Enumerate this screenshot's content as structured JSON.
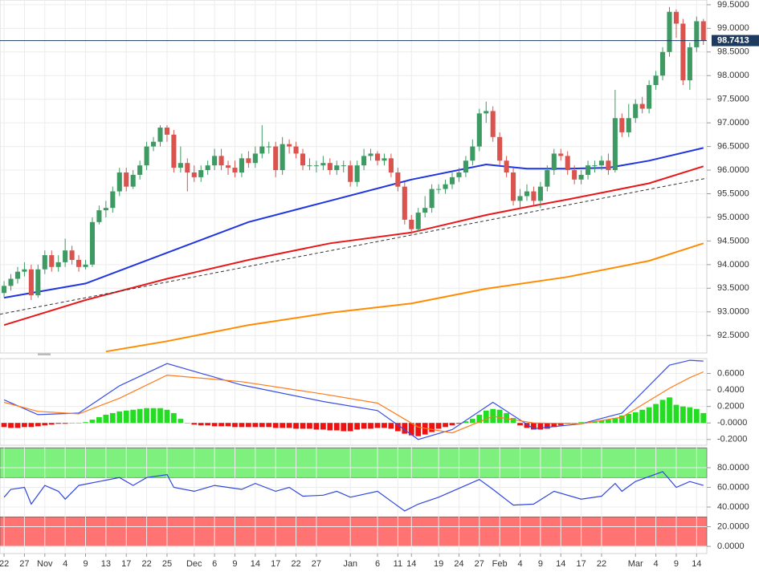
{
  "chart_data": [
    {
      "type": "candlestick",
      "xlim": [
        -0.6,
        103.5
      ],
      "ylim": [
        92.13,
        99.6
      ],
      "yticks": [
        {
          "value": 92.5,
          "label": "92.5000"
        },
        {
          "value": 93,
          "label": "93.0000"
        },
        {
          "value": 93.5,
          "label": "93.5000"
        },
        {
          "value": 94,
          "label": "94.0000"
        },
        {
          "value": 94.5,
          "label": "94.5000"
        },
        {
          "value": 95,
          "label": "95.0000"
        },
        {
          "value": 95.5,
          "label": "95.5000"
        },
        {
          "value": 96,
          "label": "96.0000"
        },
        {
          "value": 96.5,
          "label": "96.5000"
        },
        {
          "value": 97,
          "label": "97.0000"
        },
        {
          "value": 97.5,
          "label": "97.5000"
        },
        {
          "value": 98,
          "label": "98.0000"
        },
        {
          "value": 98.5,
          "label": "98.5000"
        },
        {
          "value": 99,
          "label": "99.0000"
        },
        {
          "value": 99.5,
          "label": "99.5000"
        }
      ],
      "grid": true,
      "up_color": "#3d9a62",
      "down_color": "#d9534f",
      "last_price": 98.7413,
      "last_price_color": "#1e3a5f",
      "open": [
        93.4,
        93.55,
        93.7,
        93.85,
        93.9,
        93.35,
        93.9,
        94.2,
        93.95,
        94.05,
        94.3,
        94.1,
        93.95,
        94.0,
        94.9,
        95.15,
        95.2,
        95.55,
        95.95,
        95.65,
        95.9,
        96.1,
        96.5,
        96.6,
        96.9,
        96.75,
        96.05,
        96.15,
        95.95,
        95.85,
        96.0,
        96.1,
        96.3,
        96.1,
        96.05,
        95.95,
        96.25,
        96.15,
        96.35,
        96.5,
        96.5,
        96.0,
        96.55,
        96.5,
        96.35,
        96.1,
        96.1,
        96.1,
        96.15,
        96.0,
        96.1,
        96.1,
        95.75,
        96.1,
        96.3,
        96.35,
        96.2,
        96.25,
        95.95,
        95.65,
        94.95,
        94.75,
        95.1,
        95.2,
        95.6,
        95.6,
        95.7,
        95.85,
        95.95,
        96.2,
        96.5,
        97.2,
        97.25,
        96.7,
        96.2,
        95.95,
        95.35,
        95.45,
        95.55,
        95.35,
        95.65,
        96.0,
        96.35,
        96.3,
        96.0,
        95.8,
        95.9,
        96.1,
        96.1,
        96.2,
        96.0,
        97.1,
        96.8,
        97.1,
        97.4,
        97.3,
        97.8,
        98.0,
        98.5,
        99.35,
        99.1,
        97.9,
        98.6,
        99.15
      ],
      "high": [
        93.65,
        93.8,
        93.95,
        94.05,
        94.0,
        94.0,
        94.3,
        94.3,
        94.2,
        94.55,
        94.4,
        94.2,
        94.1,
        95.0,
        95.25,
        95.35,
        95.65,
        96.05,
        96.05,
        96.0,
        96.2,
        96.6,
        96.7,
        96.95,
        96.95,
        96.85,
        96.5,
        96.25,
        96.1,
        96.1,
        96.2,
        96.45,
        96.45,
        96.2,
        96.2,
        96.35,
        96.4,
        96.5,
        96.95,
        96.6,
        96.6,
        96.7,
        96.65,
        96.6,
        96.45,
        96.25,
        96.2,
        96.3,
        96.25,
        96.2,
        96.2,
        96.2,
        96.2,
        96.45,
        96.45,
        96.4,
        96.35,
        96.35,
        96.05,
        95.75,
        95.05,
        95.2,
        95.45,
        95.7,
        95.7,
        95.8,
        95.95,
        96.05,
        96.3,
        96.65,
        97.3,
        97.45,
        97.35,
        96.8,
        96.3,
        96.05,
        95.6,
        95.7,
        95.65,
        95.75,
        96.1,
        96.45,
        96.45,
        96.4,
        96.1,
        96.0,
        96.2,
        96.2,
        96.3,
        96.35,
        97.7,
        97.2,
        97.4,
        97.5,
        97.55,
        97.9,
        98.1,
        98.6,
        99.45,
        99.4,
        99.2,
        98.7,
        99.25,
        99.2
      ],
      "low": [
        93.3,
        93.45,
        93.6,
        93.75,
        93.25,
        93.3,
        93.8,
        93.85,
        93.85,
        93.95,
        94.0,
        93.85,
        93.9,
        93.95,
        94.85,
        95.0,
        95.1,
        95.45,
        95.55,
        95.6,
        95.8,
        96.0,
        96.4,
        96.5,
        96.6,
        95.95,
        95.95,
        95.55,
        95.75,
        95.75,
        95.9,
        96.0,
        96.0,
        95.9,
        95.85,
        95.85,
        96.05,
        96.05,
        96.25,
        96.35,
        95.85,
        95.9,
        96.35,
        96.25,
        96.0,
        96.0,
        95.95,
        96.0,
        95.9,
        95.9,
        95.95,
        95.65,
        95.65,
        96.0,
        96.2,
        96.1,
        96.1,
        95.85,
        95.55,
        94.85,
        94.65,
        94.7,
        95.0,
        95.1,
        95.5,
        95.5,
        95.6,
        95.75,
        95.85,
        96.1,
        96.4,
        97.0,
        96.6,
        96.1,
        95.85,
        95.25,
        95.2,
        95.35,
        95.25,
        95.2,
        95.55,
        95.9,
        96.2,
        95.9,
        95.7,
        95.7,
        95.8,
        95.95,
        96.0,
        95.9,
        95.95,
        96.7,
        96.7,
        97.0,
        97.2,
        97.2,
        97.7,
        97.9,
        98.4,
        98.8,
        97.8,
        97.7,
        98.5,
        98.65
      ],
      "close": [
        93.55,
        93.7,
        93.85,
        93.9,
        93.35,
        93.9,
        94.2,
        93.95,
        94.05,
        94.3,
        94.1,
        93.95,
        94.0,
        94.9,
        95.15,
        95.2,
        95.55,
        95.95,
        95.65,
        95.9,
        96.1,
        96.5,
        96.6,
        96.9,
        96.75,
        96.05,
        96.15,
        95.95,
        95.85,
        96.0,
        96.1,
        96.3,
        96.1,
        96.05,
        95.95,
        96.25,
        96.15,
        96.35,
        96.5,
        96.5,
        96.0,
        96.55,
        96.5,
        96.35,
        96.1,
        96.1,
        96.1,
        96.15,
        96.0,
        96.1,
        96.1,
        95.75,
        96.1,
        96.3,
        96.35,
        96.2,
        96.25,
        95.95,
        95.65,
        94.95,
        94.75,
        95.1,
        95.2,
        95.6,
        95.6,
        95.7,
        95.85,
        95.95,
        96.2,
        96.5,
        97.2,
        97.25,
        96.7,
        96.2,
        95.95,
        95.35,
        95.45,
        95.55,
        95.35,
        95.65,
        96.0,
        96.35,
        96.3,
        96.0,
        95.8,
        95.9,
        96.1,
        96.1,
        96.2,
        96.0,
        97.1,
        96.8,
        97.1,
        97.4,
        97.3,
        97.8,
        98.0,
        98.5,
        99.35,
        99.1,
        97.9,
        98.6,
        99.15,
        98.74
      ],
      "series": [
        {
          "color": "#1f35e0",
          "x": [
            0,
            12,
            24,
            36,
            48,
            60,
            71,
            77,
            83,
            89,
            95,
            103
          ],
          "values": [
            93.3,
            93.6,
            94.25,
            94.9,
            95.35,
            95.8,
            96.12,
            96.03,
            96.03,
            96.05,
            96.2,
            96.47
          ]
        },
        {
          "color": "#e8171a",
          "x": [
            0,
            12,
            24,
            36,
            48,
            60,
            71,
            77,
            83,
            89,
            95,
            103
          ],
          "values": [
            92.72,
            93.25,
            93.7,
            94.1,
            94.45,
            94.68,
            95.05,
            95.22,
            95.38,
            95.55,
            95.72,
            96.08
          ]
        },
        {
          "color": "#ff8c00",
          "x": [
            15,
            24,
            36,
            48,
            60,
            71,
            83,
            95,
            103
          ],
          "values": [
            92.16,
            92.38,
            92.72,
            92.98,
            93.18,
            93.49,
            93.74,
            94.08,
            94.45
          ]
        },
        {
          "color": "#333333",
          "dash": true,
          "x": [
            -0.6,
            103.5
          ],
          "values": [
            92.95,
            95.83
          ]
        }
      ]
    },
    {
      "type": "macd",
      "ylim": [
        -0.27,
        0.78
      ],
      "yticks": [
        {
          "value": -0.2,
          "label": "-0.2000"
        },
        {
          "value": 0,
          "label": "-0.0000"
        },
        {
          "value": 0.2,
          "label": "0.2000"
        },
        {
          "value": 0.4,
          "label": "0.4000"
        },
        {
          "value": 0.6,
          "label": "0.6000"
        }
      ],
      "grid": true,
      "up_color": "#22dd22",
      "down_color": "#ee1111",
      "histogram": [
        -0.05,
        -0.06,
        -0.06,
        -0.05,
        -0.05,
        -0.04,
        -0.03,
        -0.02,
        -0.01,
        -0.01,
        0.0,
        0.0,
        0.01,
        0.04,
        0.07,
        0.1,
        0.12,
        0.14,
        0.15,
        0.16,
        0.17,
        0.18,
        0.18,
        0.18,
        0.16,
        0.12,
        0.05,
        0.0,
        -0.02,
        -0.03,
        -0.03,
        -0.04,
        -0.04,
        -0.04,
        -0.05,
        -0.05,
        -0.05,
        -0.05,
        -0.05,
        -0.05,
        -0.06,
        -0.06,
        -0.06,
        -0.07,
        -0.07,
        -0.07,
        -0.08,
        -0.08,
        -0.09,
        -0.09,
        -0.1,
        -0.1,
        -0.08,
        -0.07,
        -0.07,
        -0.06,
        -0.06,
        -0.07,
        -0.1,
        -0.13,
        -0.15,
        -0.16,
        -0.14,
        -0.11,
        -0.07,
        -0.05,
        -0.03,
        -0.01,
        0.02,
        0.05,
        0.1,
        0.15,
        0.17,
        0.16,
        0.12,
        0.06,
        -0.03,
        -0.06,
        -0.08,
        -0.08,
        -0.07,
        -0.05,
        -0.03,
        -0.01,
        0.0,
        0.01,
        0.01,
        0.02,
        0.03,
        0.04,
        0.06,
        0.09,
        0.11,
        0.13,
        0.16,
        0.19,
        0.23,
        0.28,
        0.31,
        0.22,
        0.2,
        0.19,
        0.17,
        0.12
      ],
      "series": [
        {
          "color": "#3a4ee8",
          "x": [
            0,
            5,
            11,
            17,
            24,
            35,
            47,
            55,
            61,
            66,
            72,
            78,
            85,
            91,
            98,
            101,
            103
          ],
          "values": [
            0.28,
            0.1,
            0.12,
            0.45,
            0.72,
            0.46,
            0.26,
            0.15,
            -0.2,
            -0.08,
            0.25,
            -0.07,
            -0.01,
            0.12,
            0.7,
            0.76,
            0.75
          ]
        },
        {
          "color": "#ff7a1a",
          "x": [
            0,
            5,
            11,
            17,
            24,
            35,
            47,
            55,
            61,
            66,
            72,
            78,
            85,
            91,
            98,
            101,
            103
          ],
          "values": [
            0.25,
            0.14,
            0.11,
            0.3,
            0.58,
            0.5,
            0.35,
            0.24,
            -0.05,
            -0.12,
            0.08,
            0.0,
            -0.01,
            0.07,
            0.42,
            0.55,
            0.62
          ]
        }
      ]
    },
    {
      "type": "rsi",
      "ylim": [
        -7.3,
        100.4
      ],
      "yticks": [
        {
          "value": 0,
          "label": "0.0000"
        },
        {
          "value": 20,
          "label": "20.0000"
        },
        {
          "value": 40,
          "label": "40.0000"
        },
        {
          "value": 60,
          "label": "60.0000"
        },
        {
          "value": 80,
          "label": "80.0000"
        }
      ],
      "grid": true,
      "bands": [
        {
          "from": 70,
          "to": 100,
          "color": "#7df07d"
        },
        {
          "from": 0,
          "to": 30,
          "color": "#ff7373"
        }
      ],
      "xticks": [
        {
          "value": 0,
          "label": "22"
        },
        {
          "value": 3,
          "label": "27"
        },
        {
          "value": 6,
          "label": "Nov"
        },
        {
          "value": 9,
          "label": "4"
        },
        {
          "value": 12,
          "label": "9"
        },
        {
          "value": 15,
          "label": "13"
        },
        {
          "value": 18,
          "label": "17"
        },
        {
          "value": 21,
          "label": "22"
        },
        {
          "value": 24,
          "label": "25"
        },
        {
          "value": 28,
          "label": "Dec"
        },
        {
          "value": 31,
          "label": "6"
        },
        {
          "value": 34,
          "label": "9"
        },
        {
          "value": 37,
          "label": "14"
        },
        {
          "value": 40,
          "label": "17"
        },
        {
          "value": 43,
          "label": "22"
        },
        {
          "value": 46,
          "label": "27"
        },
        {
          "value": 51,
          "label": "Jan"
        },
        {
          "value": 55,
          "label": "6"
        },
        {
          "value": 58,
          "label": "11"
        },
        {
          "value": 60,
          "label": "14"
        },
        {
          "value": 64,
          "label": "19"
        },
        {
          "value": 67,
          "label": "24"
        },
        {
          "value": 70,
          "label": "27"
        },
        {
          "value": 73,
          "label": "Feb"
        },
        {
          "value": 76,
          "label": "4"
        },
        {
          "value": 79,
          "label": "9"
        },
        {
          "value": 82,
          "label": "14"
        },
        {
          "value": 85,
          "label": "17"
        },
        {
          "value": 88,
          "label": "22"
        },
        {
          "value": 93,
          "label": "Mar"
        },
        {
          "value": 96,
          "label": "4"
        },
        {
          "value": 99,
          "label": "9"
        },
        {
          "value": 102,
          "label": "14"
        }
      ],
      "series": [
        {
          "color": "#2f45e0",
          "x": [
            0,
            1,
            3,
            4,
            6,
            8,
            9,
            11,
            14,
            17,
            19,
            21,
            24,
            25,
            28,
            31,
            35,
            37,
            40,
            42,
            44,
            47,
            49,
            51,
            55,
            57,
            59,
            61,
            64,
            68,
            70,
            72,
            75,
            78,
            81,
            85,
            88,
            90,
            91,
            93,
            97,
            99,
            101,
            103
          ],
          "values": [
            50,
            58,
            60,
            43,
            62,
            56,
            48,
            62,
            66,
            70,
            62,
            70,
            73,
            60,
            56,
            62,
            58,
            64,
            56,
            60,
            51,
            52,
            56,
            50,
            56,
            46,
            36,
            43,
            50,
            62,
            68,
            58,
            42,
            43,
            56,
            48,
            51,
            64,
            56,
            66,
            76,
            60,
            66,
            62
          ]
        }
      ]
    }
  ]
}
